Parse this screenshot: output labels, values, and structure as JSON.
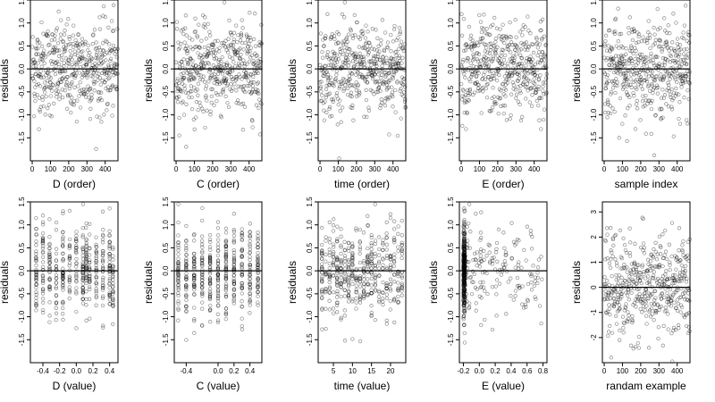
{
  "chart_data": [
    {
      "type": "scatter",
      "xlabel": "D (order)",
      "ylabel": "residuals",
      "xlim": [
        -10,
        470
      ],
      "ylim": [
        -2.0,
        1.5
      ],
      "xticks": [
        "0",
        "100",
        "200",
        "300",
        "400"
      ],
      "yticks": [
        "-1.5",
        "-1.0",
        "-0.5",
        "0.0",
        "0.5",
        "1.0",
        "1.5"
      ],
      "reference_line": 0,
      "pattern": "index",
      "n_points": 470,
      "spread": 0.5
    },
    {
      "type": "scatter",
      "xlabel": "C (order)",
      "ylabel": "residuals",
      "xlim": [
        -10,
        470
      ],
      "ylim": [
        -2.0,
        1.5
      ],
      "xticks": [
        "0",
        "100",
        "200",
        "300",
        "400"
      ],
      "yticks": [
        "-1.5",
        "-1.0",
        "-0.5",
        "0.0",
        "0.5",
        "1.0",
        "1.5"
      ],
      "reference_line": 0,
      "pattern": "index",
      "n_points": 470,
      "spread": 0.5
    },
    {
      "type": "scatter",
      "xlabel": "time (order)",
      "ylabel": "residuals",
      "xlim": [
        -10,
        470
      ],
      "ylim": [
        -2.0,
        1.5
      ],
      "xticks": [
        "0",
        "100",
        "200",
        "300",
        "400"
      ],
      "yticks": [
        "-1.5",
        "-1.0",
        "-0.5",
        "0.0",
        "0.5",
        "1.0",
        "1.5"
      ],
      "reference_line": 0,
      "pattern": "index",
      "n_points": 470,
      "spread": 0.5
    },
    {
      "type": "scatter",
      "xlabel": "E (order)",
      "ylabel": "residuals",
      "xlim": [
        -10,
        470
      ],
      "ylim": [
        -2.0,
        1.5
      ],
      "xticks": [
        "0",
        "100",
        "200",
        "300",
        "400"
      ],
      "yticks": [
        "-1.5",
        "-1.0",
        "-0.5",
        "0.0",
        "0.5",
        "1.0",
        "1.5"
      ],
      "reference_line": 0,
      "pattern": "index",
      "n_points": 470,
      "spread": 0.5
    },
    {
      "type": "scatter",
      "xlabel": "sample index",
      "ylabel": "residuals",
      "xlim": [
        -10,
        470
      ],
      "ylim": [
        -2.0,
        1.5
      ],
      "xticks": [
        "0",
        "100",
        "200",
        "300",
        "400"
      ],
      "yticks": [
        "-1.5",
        "-1.0",
        "-0.5",
        "0.0",
        "0.5",
        "1.0",
        "1.5"
      ],
      "reference_line": 0,
      "pattern": "index",
      "n_points": 470,
      "spread": 0.5
    },
    {
      "type": "scatter",
      "xlabel": "D (value)",
      "ylabel": "residuals",
      "xlim": [
        -0.55,
        0.5
      ],
      "ylim": [
        -2.0,
        1.5
      ],
      "xticks": [
        "-0.4",
        "-0.2",
        "0.0",
        "0.2",
        "0.4"
      ],
      "yticks": [
        "-1.5",
        "-1.0",
        "-0.5",
        "0.0",
        "0.5",
        "1.0",
        "1.5"
      ],
      "reference_line": 0,
      "pattern": "clustered",
      "x_values": [
        -0.48,
        -0.4,
        -0.32,
        -0.24,
        -0.16,
        -0.08,
        0,
        0.08,
        0.12,
        0.16,
        0.24,
        0.32,
        0.4,
        0.44
      ],
      "n_points": 470,
      "spread": 0.5
    },
    {
      "type": "scatter",
      "xlabel": "C (value)",
      "ylabel": "residuals",
      "xlim": [
        -0.55,
        0.55
      ],
      "ylim": [
        -2.0,
        1.5
      ],
      "xticks": [
        "-0.4",
        "0.0",
        "0.2",
        "0.4"
      ],
      "yticks": [
        "-1.5",
        "-1.0",
        "-0.5",
        "0.0",
        "0.5",
        "1.0",
        "1.5"
      ],
      "reference_line": 0,
      "pattern": "clustered",
      "x_values": [
        -0.5,
        -0.4,
        -0.3,
        -0.2,
        -0.1,
        0,
        0.1,
        0.2,
        0.3,
        0.4,
        0.5
      ],
      "n_points": 470,
      "spread": 0.5
    },
    {
      "type": "scatter",
      "xlabel": "time (value)",
      "ylabel": "residuals",
      "xlim": [
        1,
        24
      ],
      "ylim": [
        -2.0,
        1.5
      ],
      "xticks": [
        "5",
        "10",
        "15",
        "20"
      ],
      "yticks": [
        "-1.5",
        "-1.0",
        "-0.5",
        "0.0",
        "0.5",
        "1.0",
        "1.5"
      ],
      "reference_line": 0,
      "pattern": "clustered",
      "x_values": [
        2,
        3,
        4,
        5,
        6,
        7,
        8,
        9,
        10,
        11,
        12,
        13,
        14,
        15,
        16,
        17,
        18,
        19,
        20,
        21,
        22,
        23
      ],
      "n_points": 470,
      "spread": 0.5
    },
    {
      "type": "scatter",
      "xlabel": "E (value)",
      "ylabel": "residuals",
      "xlim": [
        -0.25,
        0.85
      ],
      "ylim": [
        -2.0,
        1.5
      ],
      "xticks": [
        "-0.2",
        "0.0",
        "0.2",
        "0.4",
        "0.6",
        "0.8"
      ],
      "yticks": [
        "-1.5",
        "-1.0",
        "-0.5",
        "0.0",
        "0.5",
        "1.0",
        "1.5"
      ],
      "reference_line": 0,
      "pattern": "skewed",
      "n_points": 470,
      "spread": 0.5
    },
    {
      "type": "scatter",
      "xlabel": "randam example",
      "ylabel": "residuals",
      "xlim": [
        -10,
        470
      ],
      "ylim": [
        -3.0,
        3.4
      ],
      "xticks": [
        "0",
        "100",
        "200",
        "300",
        "400"
      ],
      "yticks": [
        "-2",
        "-1",
        "0",
        "1",
        "2",
        "3"
      ],
      "reference_line": 0,
      "pattern": "index",
      "n_points": 470,
      "spread": 1.0
    }
  ]
}
